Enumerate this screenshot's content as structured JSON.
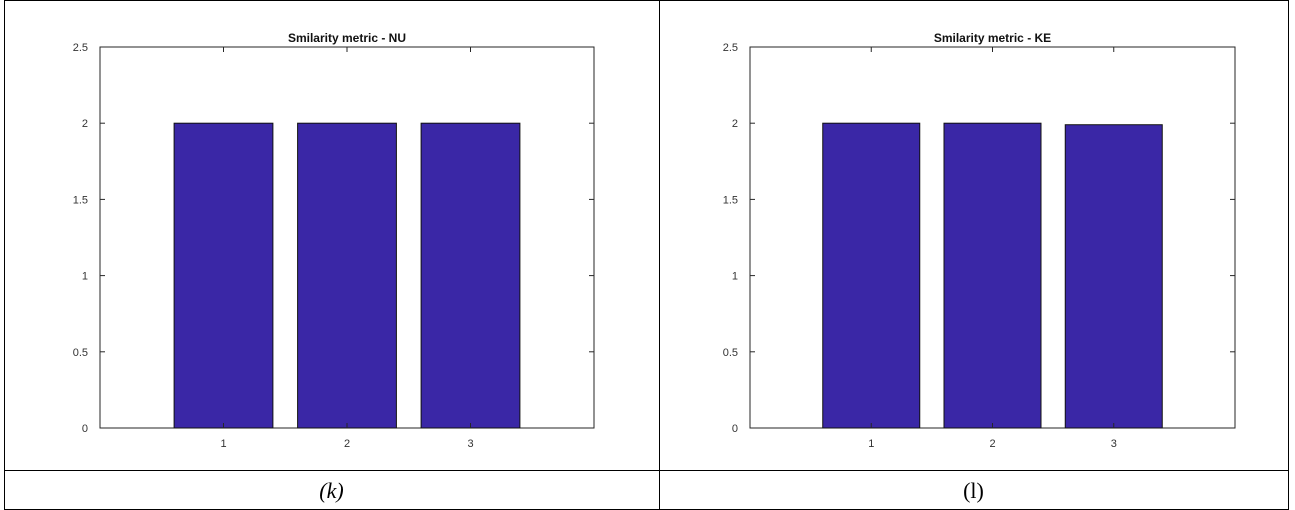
{
  "panels": [
    {
      "caption": "(k)",
      "caption_style": "italic"
    },
    {
      "caption": "(l)",
      "caption_style": "normal"
    }
  ],
  "chart_data": [
    {
      "type": "bar",
      "title": "Smilarity metric - NU",
      "xlabel": "",
      "ylabel": "",
      "categories": [
        "1",
        "2",
        "3"
      ],
      "values": [
        2.0,
        2.0,
        2.0
      ],
      "ylim": [
        0,
        2.5
      ],
      "yticks": [
        "0",
        "0.5",
        "1",
        "1.5",
        "2",
        "2.5"
      ],
      "bar_color": "#3a27a6",
      "grid": false
    },
    {
      "type": "bar",
      "title": "Smilarity metric - KE",
      "xlabel": "",
      "ylabel": "",
      "categories": [
        "1",
        "2",
        "3"
      ],
      "values": [
        2.0,
        2.0,
        1.99
      ],
      "ylim": [
        0,
        2.5
      ],
      "yticks": [
        "0",
        "0.5",
        "1",
        "1.5",
        "2",
        "2.5"
      ],
      "bar_color": "#3a27a6",
      "grid": false
    }
  ]
}
